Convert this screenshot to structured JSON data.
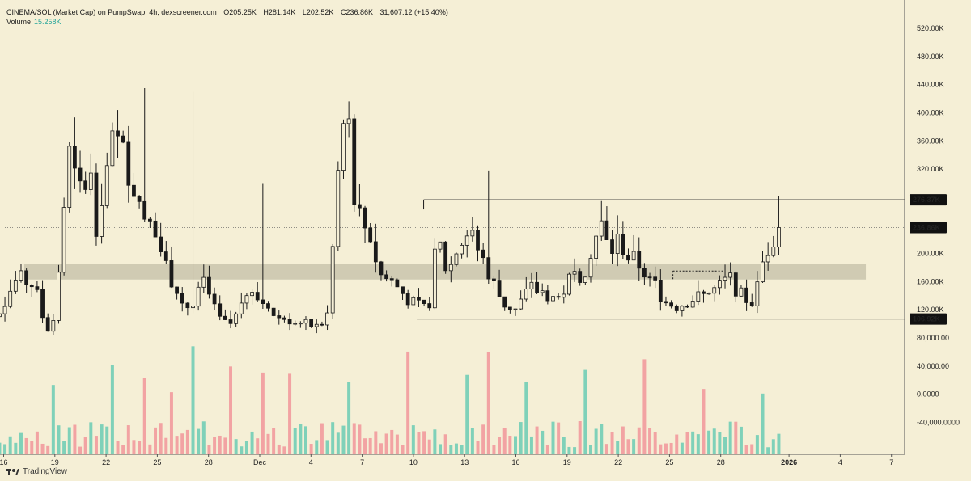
{
  "header": {
    "symbol": "CINEMA/SOL (Market Cap) on PumpSwap, 4h, dexscreener.com",
    "open": "O205.25K",
    "high": "H281.14K",
    "low": "L202.52K",
    "close": "C236.86K",
    "change": "31,607.12 (+15.40%)",
    "volume_label": "Volume",
    "volume_value": "15.258K"
  },
  "branding": {
    "name": "TradingView"
  },
  "colors": {
    "background": "#f5efd6",
    "up": "#1a1a1a",
    "down": "#1a1a1a",
    "volume_up": "#7fd1b9",
    "volume_down": "#f2a3a3",
    "zone": "#c9c4ad"
  },
  "chart_data": {
    "type": "candlestick",
    "title": "CINEMA/SOL (Market Cap) on PumpSwap, 4h, dexscreener.com",
    "interval": "4h",
    "y_axis_labels": [
      "520.00K",
      "480.00K",
      "440.00K",
      "400.00K",
      "360.00K",
      "320.00K",
      "280.00K",
      "240.00K",
      "200.00K",
      "160.00K",
      "120.00K",
      "80,000.00",
      "40,000.00",
      "0.0000",
      "-40,000.0000"
    ],
    "y_axis_values": [
      520000,
      480000,
      440000,
      400000,
      360000,
      320000,
      280000,
      240000,
      200000,
      160000,
      120000,
      80000,
      40000,
      0,
      -40000
    ],
    "ylim": [
      -60000,
      540000
    ],
    "x_axis_labels": [
      "16",
      "19",
      "22",
      "25",
      "28",
      "Dec",
      "4",
      "7",
      "10",
      "13",
      "16",
      "19",
      "22",
      "25",
      "28",
      "2026",
      "4",
      "7"
    ],
    "x_axis_days": [
      -15,
      -12,
      -9,
      -6,
      -3,
      0,
      3,
      6,
      9,
      12,
      15,
      18,
      21,
      24,
      27,
      31,
      34,
      37
    ],
    "price_labels": [
      {
        "text": "276.37K",
        "value": 276370
      },
      {
        "text": "236.86K",
        "value": 236860
      },
      {
        "text": "106.92K",
        "value": 106920
      }
    ],
    "last_price": 236860,
    "support_zone": [
      163000,
      185000
    ],
    "range_box": {
      "top": 276370,
      "bottom": 106920,
      "start_day": -13.5,
      "end_day": 40
    },
    "breakout_line": {
      "value": 175000,
      "start_day": 24.2,
      "end_day": 26.8
    },
    "path_days": [
      -16.5,
      -15.5,
      -14.2,
      -13.2,
      -12.5,
      -12.0,
      -11.2,
      -10.8,
      -10.3,
      -10.0,
      -9.6,
      -9.2,
      -8.5,
      -7.8,
      -7.0,
      -6.2,
      -5.2,
      -4.5,
      -4.0,
      -3.3,
      -2.5,
      -1.8,
      -1.0,
      0.0,
      1.0,
      2.0,
      2.5,
      3.5,
      4.0,
      4.7,
      5.1,
      5.6,
      6.0,
      6.5,
      7.0,
      7.8,
      8.5,
      9.2,
      9.7,
      10.0,
      10.4,
      11.0,
      11.6,
      12.2,
      12.8,
      13.4,
      14.2,
      15.0,
      15.8,
      16.6,
      17.5,
      18.2,
      19.0,
      19.5,
      20.0,
      20.5,
      21.0,
      21.6,
      22.2,
      23.0,
      23.8,
      24.5,
      25.2,
      26.0,
      26.8,
      27.5,
      28.2,
      28.8,
      29.2,
      29.6,
      30.0,
      30.4
    ],
    "path_values": [
      65000,
      110000,
      165000,
      155000,
      90000,
      110000,
      345000,
      300000,
      285000,
      330000,
      240000,
      295000,
      365000,
      330000,
      270000,
      230000,
      165000,
      130000,
      120000,
      160000,
      110000,
      95000,
      145000,
      135000,
      110000,
      105000,
      100000,
      95000,
      115000,
      350000,
      410000,
      270000,
      245000,
      225000,
      170000,
      160000,
      140000,
      125000,
      120000,
      135000,
      225000,
      170000,
      210000,
      230000,
      205000,
      175000,
      130000,
      120000,
      150000,
      145000,
      135000,
      165000,
      175000,
      215000,
      240000,
      200000,
      220000,
      195000,
      185000,
      160000,
      130000,
      125000,
      135000,
      140000,
      150000,
      165000,
      140000,
      130000,
      155000,
      205000,
      215000,
      236860
    ],
    "candle_count": 150,
    "volume_peak": 125000
  }
}
